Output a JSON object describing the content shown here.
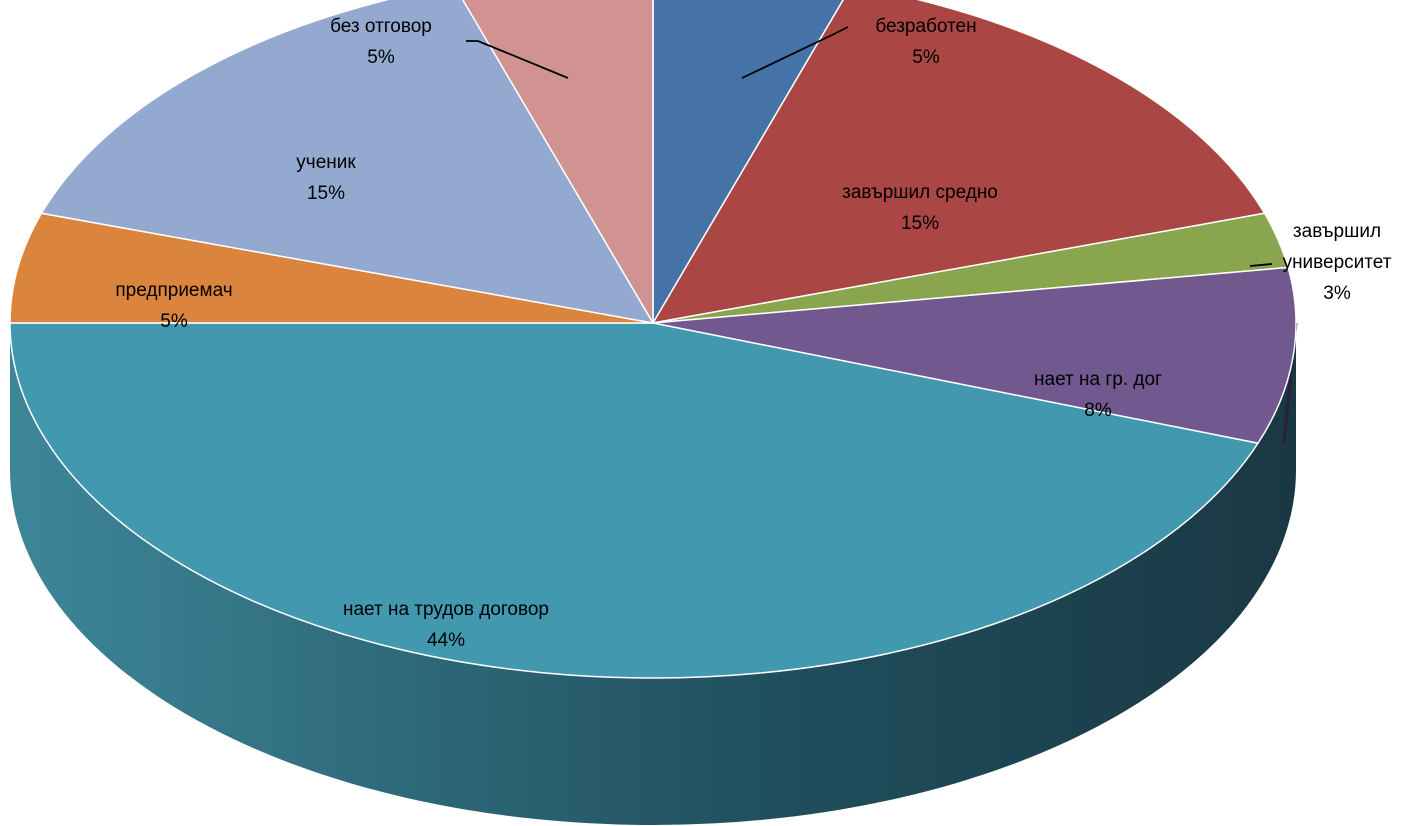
{
  "chart_data": {
    "type": "pie",
    "variant": "3d",
    "title": "",
    "slices": [
      {
        "label": "безработен",
        "label_lines": [
          "безработен"
        ],
        "percent_label": "5%",
        "value": 5,
        "color": "#4572A7"
      },
      {
        "label": "завършил средно",
        "label_lines": [
          "завършил средно"
        ],
        "percent_label": "15%",
        "value": 15,
        "color": "#AA4643"
      },
      {
        "label": "завършил университет",
        "label_lines": [
          "завършил",
          "университет"
        ],
        "percent_label": "3%",
        "value": 2.5,
        "color": "#89A54E"
      },
      {
        "label": "нает на гр. дог",
        "label_lines": [
          "нает на гр. дог"
        ],
        "percent_label": "8%",
        "value": 8,
        "color": "#71588F"
      },
      {
        "label": "нает на трудов договор",
        "label_lines": [
          "нает на трудов договор"
        ],
        "percent_label": "44%",
        "value": 44.5,
        "color": "#4198AF"
      },
      {
        "label": "предприемач",
        "label_lines": [
          "предприемач"
        ],
        "percent_label": "5%",
        "value": 5,
        "color": "#DB843D"
      },
      {
        "label": "ученик",
        "label_lines": [
          "ученик"
        ],
        "percent_label": "15%",
        "value": 15,
        "color": "#93A9CF"
      },
      {
        "label": "без отговор",
        "label_lines": [
          "без отговор"
        ],
        "percent_label": "5%",
        "value": 5,
        "color": "#D19392"
      }
    ]
  }
}
